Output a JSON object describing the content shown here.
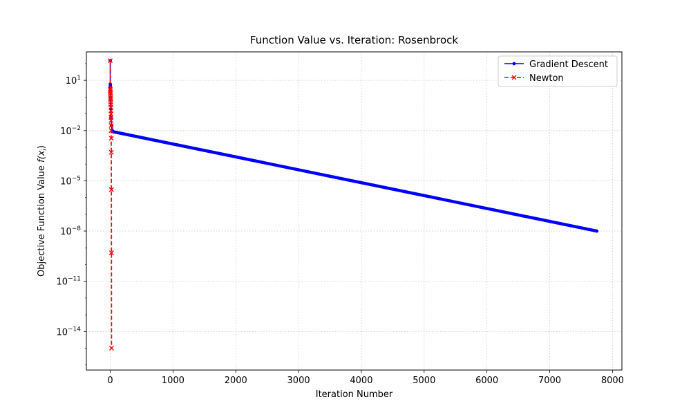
{
  "chart_data": {
    "type": "line",
    "title": "Function Value vs. Iteration: Rosenbrock",
    "xlabel": "Iteration Number",
    "ylabel": "Objective Function Value ",
    "ylabel_math": "f(x",
    "ylabel_math_sub": "i",
    "ylabel_math_close": ")",
    "xscale": "linear",
    "yscale": "log",
    "xlim": [
      -380,
      8150
    ],
    "ylim_log10": [
      -16.3,
      2.7
    ],
    "grid": true,
    "legend_position": "top-right",
    "x_ticks": [
      "0",
      "1000",
      "2000",
      "3000",
      "4000",
      "5000",
      "6000",
      "7000",
      "8000"
    ],
    "x_tick_values": [
      0,
      1000,
      2000,
      3000,
      4000,
      5000,
      6000,
      7000,
      8000
    ],
    "y_ticks": [
      {
        "base": "10",
        "exp": "1",
        "log10": 1
      },
      {
        "base": "10",
        "exp": "−2",
        "log10": -2
      },
      {
        "base": "10",
        "exp": "−5",
        "log10": -5
      },
      {
        "base": "10",
        "exp": "−8",
        "log10": -8
      },
      {
        "base": "10",
        "exp": "−11",
        "log10": -11
      },
      {
        "base": "10",
        "exp": "−14",
        "log10": -14
      }
    ],
    "series": [
      {
        "name": "Gradient Descent",
        "color": "#0000ff",
        "linestyle": "solid",
        "marker": "dot",
        "x": [
          0,
          1,
          2,
          3,
          5,
          8,
          12,
          20,
          30,
          40,
          50,
          7750
        ],
        "y": [
          150,
          6,
          5,
          4,
          0.8,
          0.2,
          0.06,
          0.02,
          0.011,
          0.009,
          0.0085,
          1e-08
        ]
      },
      {
        "name": "Newton",
        "color": "#ff0000",
        "linestyle": "dashed",
        "marker": "x",
        "x": [
          0,
          1,
          2,
          3,
          4,
          5,
          6,
          7,
          8,
          9,
          10,
          11,
          12,
          13,
          14,
          15,
          16,
          17,
          18,
          19,
          20,
          21
        ],
        "y": [
          150,
          3,
          2.5,
          2.0,
          1.6,
          1.2,
          0.9,
          0.7,
          0.5,
          0.35,
          0.25,
          0.15,
          0.1,
          0.06,
          0.04,
          0.02,
          0.01,
          0.0035,
          0.0005,
          3e-06,
          5e-10,
          1e-15
        ]
      }
    ]
  }
}
